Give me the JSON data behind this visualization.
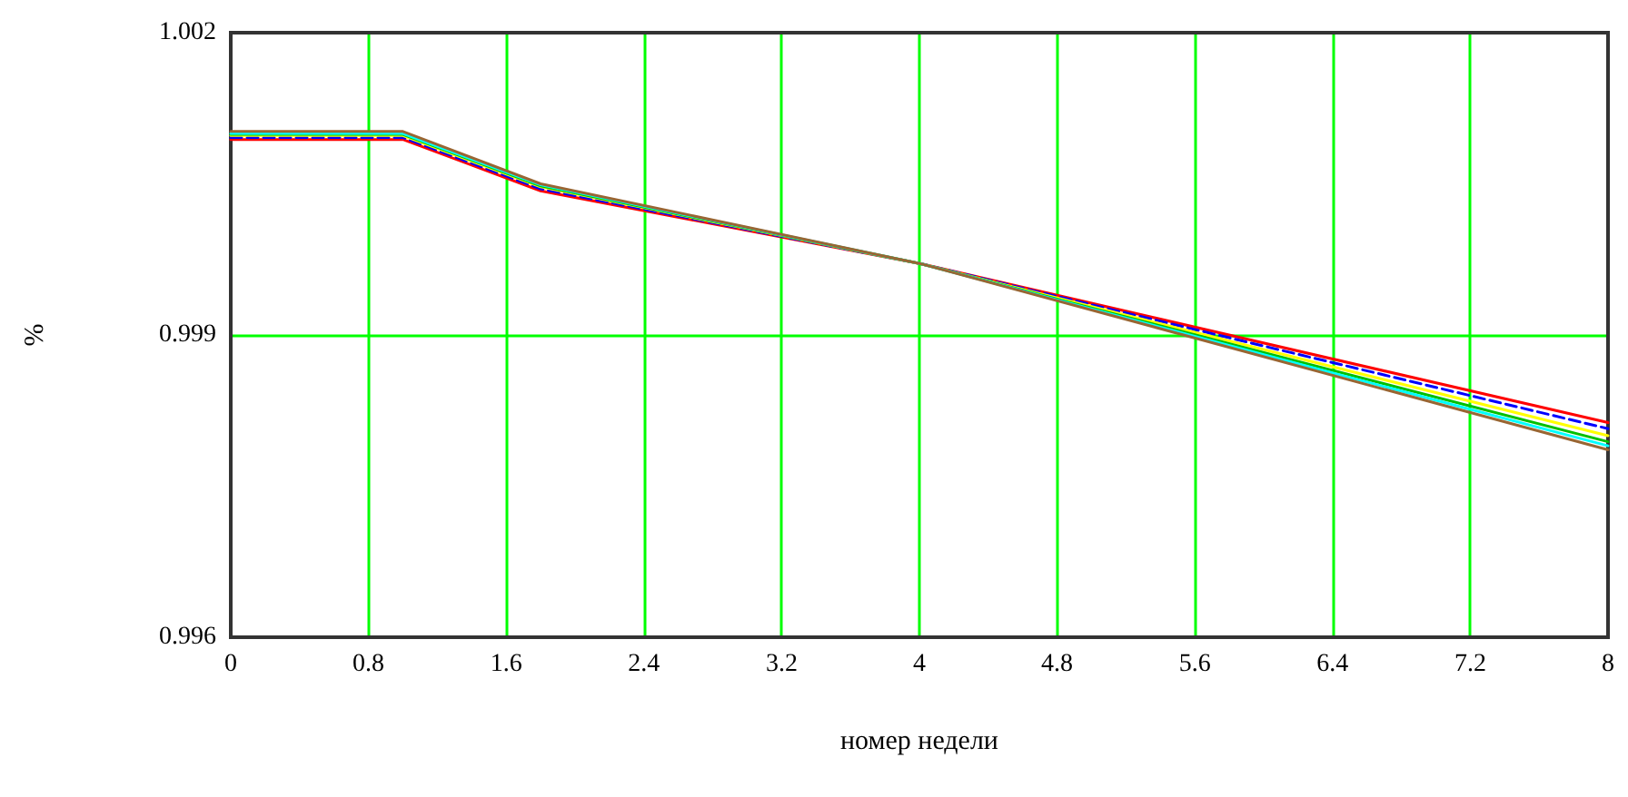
{
  "chart_data": {
    "type": "line",
    "xlabel": "номер недели",
    "ylabel": "%",
    "x": [
      0,
      1,
      1.8,
      4,
      8
    ],
    "series": [
      {
        "color": "#ff0000",
        "values": [
          1.00094,
          1.00094,
          1.00043,
          0.99971,
          0.99813
        ]
      },
      {
        "color": "#0000ff",
        "line_style": "dashed",
        "values": [
          1.00096,
          1.00096,
          1.00045,
          0.99971,
          0.99807
        ]
      },
      {
        "color": "#ffff00",
        "values": [
          1.00098,
          1.00098,
          1.00047,
          0.99971,
          0.998
        ]
      },
      {
        "color": "#00c000",
        "values": [
          1.00099,
          1.00099,
          1.00048,
          0.99971,
          0.99794
        ]
      },
      {
        "color": "#00ffff",
        "values": [
          1.001,
          1.001,
          1.00049,
          0.99971,
          0.9979
        ]
      },
      {
        "color": "#996633",
        "values": [
          1.00102,
          1.00102,
          1.0005,
          0.99971,
          0.99786
        ]
      }
    ],
    "xlim": [
      0,
      8
    ],
    "xticks": [
      0,
      0.8,
      1.6,
      2.4,
      3.2,
      4,
      4.8,
      5.6,
      6.4,
      7.2,
      8
    ],
    "ylim": [
      0.996,
      1.002
    ],
    "yticks": [
      0.996,
      0.999,
      1.002
    ],
    "grid": true,
    "marker": "none",
    "line_style": "solid"
  }
}
